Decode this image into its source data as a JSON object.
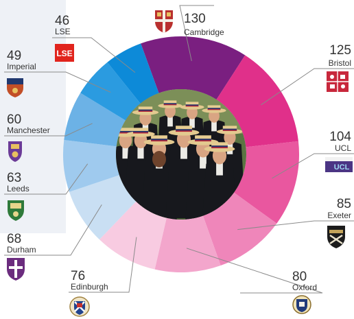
{
  "chart_data": {
    "type": "pie",
    "variant": "donut",
    "title": "",
    "series": [
      {
        "category": "Cambridge",
        "value": 130,
        "color": "#7a1f80",
        "crest": "cambridge"
      },
      {
        "category": "Bristol",
        "value": 125,
        "color": "#e0308a",
        "crest": "bristol"
      },
      {
        "category": "UCL",
        "value": 104,
        "color": "#e9579f",
        "crest": "ucl"
      },
      {
        "category": "Exeter",
        "value": 85,
        "color": "#ef86ba",
        "crest": "exeter"
      },
      {
        "category": "Oxford",
        "value": 80,
        "color": "#f3a6cc",
        "crest": "oxford"
      },
      {
        "category": "Edinburgh",
        "value": 76,
        "color": "#f8cbe1",
        "crest": "edinburgh"
      },
      {
        "category": "Durham",
        "value": 68,
        "color": "#c9dff3",
        "crest": "durham"
      },
      {
        "category": "Leeds",
        "value": 63,
        "color": "#9fcaee",
        "crest": "leeds"
      },
      {
        "category": "Manchester",
        "value": 60,
        "color": "#6cb2e6",
        "crest": "manchester"
      },
      {
        "category": "Imperial",
        "value": 49,
        "color": "#2b9be0",
        "crest": "imperial"
      },
      {
        "category": "LSE",
        "value": 46,
        "color": "#0d8ad8",
        "crest": "lse"
      }
    ],
    "center_image": "students-in-boater-hats-photo",
    "logo_text": {
      "lse": "LSE",
      "ucl": "UCL"
    }
  }
}
